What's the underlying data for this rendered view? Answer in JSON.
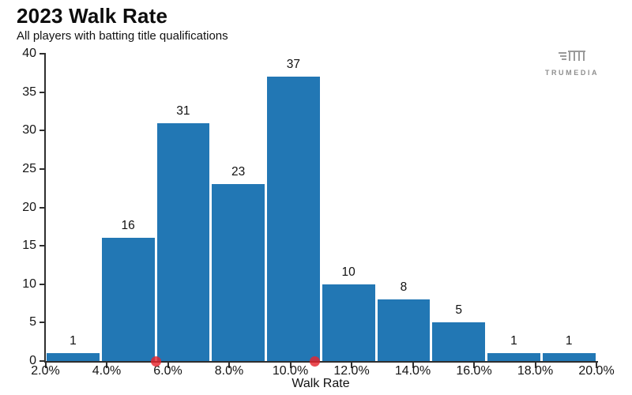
{
  "header": {
    "title": "2023 Walk Rate",
    "subtitle": "All players with batting title qualifications"
  },
  "watermark": {
    "brand": "TRUMEDIA"
  },
  "chart_data": {
    "type": "bar",
    "subtype": "histogram",
    "title": "2023 Walk Rate",
    "subtitle": "All players with batting title qualifications",
    "xlabel": "Walk Rate",
    "ylabel": "",
    "xlim": [
      2,
      20
    ],
    "ylim": [
      0,
      40
    ],
    "grid": false,
    "legend": null,
    "x_ticks": [
      {
        "value": 2,
        "label": "2.0%"
      },
      {
        "value": 4,
        "label": "4.0%"
      },
      {
        "value": 6,
        "label": "6.0%"
      },
      {
        "value": 8,
        "label": "8.0%"
      },
      {
        "value": 10,
        "label": "10.0%"
      },
      {
        "value": 12,
        "label": "12.0%"
      },
      {
        "value": 14,
        "label": "14.0%"
      },
      {
        "value": 16,
        "label": "16.0%"
      },
      {
        "value": 18,
        "label": "18.0%"
      },
      {
        "value": 20,
        "label": "20.0%"
      }
    ],
    "y_ticks": [
      0,
      5,
      10,
      15,
      20,
      25,
      30,
      35,
      40
    ],
    "bins": [
      {
        "start": 2.0,
        "end": 3.8,
        "count": 1
      },
      {
        "start": 3.8,
        "end": 5.6,
        "count": 16
      },
      {
        "start": 5.6,
        "end": 7.4,
        "count": 31
      },
      {
        "start": 7.4,
        "end": 9.2,
        "count": 23
      },
      {
        "start": 9.2,
        "end": 11.0,
        "count": 37
      },
      {
        "start": 11.0,
        "end": 12.8,
        "count": 10
      },
      {
        "start": 12.8,
        "end": 14.6,
        "count": 8
      },
      {
        "start": 14.6,
        "end": 16.4,
        "count": 5
      },
      {
        "start": 16.4,
        "end": 18.2,
        "count": 1
      },
      {
        "start": 18.2,
        "end": 20.0,
        "count": 1
      }
    ],
    "markers": [
      {
        "shape": "dot",
        "x": 5.6
      },
      {
        "shape": "dot",
        "x": 10.8
      }
    ],
    "colors": {
      "bar": "#2277b4",
      "marker": "rgba(229,37,45,0.82)",
      "axis": "#2f2f2f",
      "watermark_gray": "#9b9b9b"
    }
  }
}
